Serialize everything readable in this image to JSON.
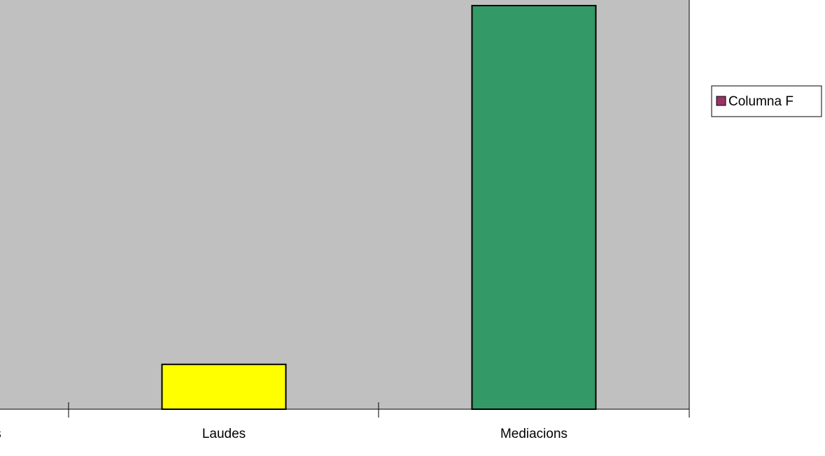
{
  "chart_data": {
    "type": "bar",
    "categories": [
      "Mediacions tancades",
      "Laudes",
      "Mediacions"
    ],
    "visible_category_labels": [
      "s",
      "Laudes",
      "Mediacions"
    ],
    "series": [
      {
        "name": "Columna F",
        "values": [
          null,
          2,
          18
        ]
      }
    ],
    "bar_colors": [
      "#c0c0c0",
      "#ffff00",
      "#339966"
    ],
    "legend_color": "#993366",
    "plot_background": "#c0c0c0",
    "ylim": [
      0,
      18
    ],
    "title": "",
    "xlabel": "",
    "ylabel": "",
    "grid": false,
    "legend_position": "right"
  }
}
